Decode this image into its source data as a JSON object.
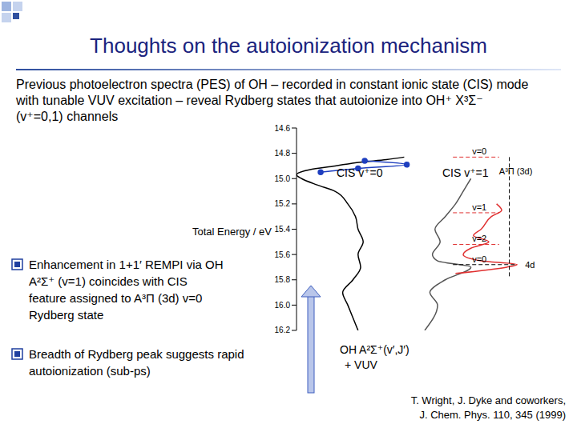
{
  "title": "Thoughts on the autoionization mechanism",
  "intro": "Previous photoelectron spectra (PES) of OH – recorded in constant ionic state (CIS) mode with tunable VUV excitation – reveal Rydberg states that autoionize into OH⁺ X³Σ⁻ (v⁺=0,1) channels",
  "bullets": [
    "Enhancement in 1+1′ REMPI via OH A²Σ⁺ (v=1) coincides with CIS feature assigned to A³Π (3d) v=0 Rydberg state",
    "Breadth of Rydberg peak suggests rapid autoionization (sub-ps)"
  ],
  "arrow_label": [
    "OH A²Σ⁺(v′,J′)",
    "+ VUV"
  ],
  "citation": [
    "T. Wright, J. Dyke and coworkers,",
    "J. Chem. Phys. 110, 345 (1999)"
  ],
  "chart_data": {
    "type": "line",
    "ylabel": "Total Energy / eV",
    "ylim": [
      14.6,
      16.2
    ],
    "yticks": [
      14.6,
      14.8,
      {
        "value": 15,
        "label": "15.0"
      },
      15.2,
      15.4,
      15.6,
      15.8,
      {
        "value": 16,
        "label": "16.0"
      },
      16.2
    ],
    "xlim": [
      0,
      10
    ],
    "tick_labels": "y",
    "series": [
      {
        "name": "CIS v⁺=0",
        "color": "#000000",
        "energy": [
          16.2,
          16.0,
          15.9,
          15.8,
          15.7,
          15.6,
          15.5,
          15.4,
          15.3,
          15.2,
          15.1,
          15.05,
          15.0,
          14.97,
          14.93,
          14.9,
          14.87,
          14.85,
          14.83
        ],
        "intensity": [
          2.4,
          2.0,
          1.8,
          2.2,
          2.5,
          2.4,
          2.6,
          2.4,
          2.3,
          2.0,
          1.5,
          0.8,
          0.2,
          0.0,
          0.5,
          1.5,
          2.5,
          3.5,
          4.2
        ]
      },
      {
        "name": "CIS v⁺=1",
        "color": "#555555",
        "energy": [
          16.2,
          16.0,
          15.9,
          15.8,
          15.7,
          15.65,
          15.6,
          15.5,
          15.4,
          15.3,
          15.2,
          15.1,
          15.0
        ],
        "intensity": [
          5.0,
          5.5,
          5.2,
          5.8,
          6.8,
          5.5,
          5.3,
          5.6,
          5.4,
          5.8,
          6.2,
          6.5,
          6.8
        ]
      },
      {
        "color": "#e03030",
        "energy": [
          15.75,
          15.7,
          15.68,
          15.65,
          15.6,
          15.55,
          15.5,
          15.45,
          15.4,
          15.3,
          15.25,
          15.2
        ],
        "intensity": [
          6.2,
          8.2,
          8.6,
          7.2,
          6.5,
          6.8,
          7.5,
          6.9,
          7.2,
          7.6,
          8.0,
          7.8
        ]
      },
      {
        "color": "#1f3fbf",
        "marker": "circle",
        "energy": [
          14.95,
          14.92,
          14.89,
          14.86
        ],
        "intensity": [
          0.94,
          2.4,
          4.3,
          2.66
        ]
      }
    ],
    "levels": [
      {
        "label": "v=0",
        "energy": 14.83
      },
      {
        "label": "v=1",
        "energy": 15.27
      },
      {
        "label": "v=2",
        "energy": 15.52
      }
    ],
    "levels_label": "A³Π (3d)",
    "upper_level": {
      "label": "v=0",
      "energy": 15.68
    },
    "upper_label": "4d"
  }
}
